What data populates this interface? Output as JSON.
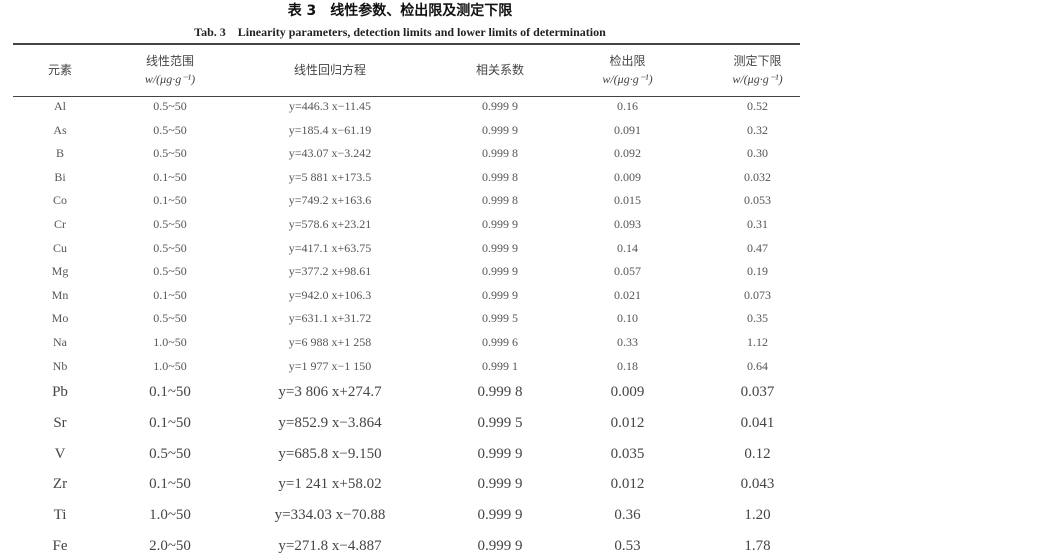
{
  "title": "表 3　线性参数、检出限及测定下限",
  "subtitle": "Tab. 3　Linearity parameters, detection limits and lower limits of determination",
  "headers": {
    "element": "元素",
    "range": "线性范围",
    "range_unit": "w/(μg·g⁻¹)",
    "equation": "线性回归方程",
    "correlation": "相关系数",
    "detection_limit": "检出限",
    "detection_unit": "w/(μg·g⁻¹)",
    "lower_limit": "测定下限",
    "lower_unit": "w/(μg·g⁻¹)"
  },
  "rows": [
    [
      "Al",
      "0.5~50",
      "y=446.3 x−11.45",
      "0.999 9",
      "0.16",
      "0.52"
    ],
    [
      "As",
      "0.5~50",
      "y=185.4 x−61.19",
      "0.999 9",
      "0.091",
      "0.32"
    ],
    [
      "B",
      "0.5~50",
      "y=43.07 x−3.242",
      "0.999 8",
      "0.092",
      "0.30"
    ],
    [
      "Bi",
      "0.1~50",
      "y=5 881 x+173.5",
      "0.999 8",
      "0.009",
      "0.032"
    ],
    [
      "Co",
      "0.1~50",
      "y=749.2 x+163.6",
      "0.999 8",
      "0.015",
      "0.053"
    ],
    [
      "Cr",
      "0.5~50",
      "y=578.6 x+23.21",
      "0.999 9",
      "0.093",
      "0.31"
    ],
    [
      "Cu",
      "0.5~50",
      "y=417.1 x+63.75",
      "0.999 9",
      "0.14",
      "0.47"
    ],
    [
      "Mg",
      "0.5~50",
      "y=377.2 x+98.61",
      "0.999 9",
      "0.057",
      "0.19"
    ],
    [
      "Mn",
      "0.1~50",
      "y=942.0 x+106.3",
      "0.999 9",
      "0.021",
      "0.073"
    ],
    [
      "Mo",
      "0.5~50",
      "y=631.1 x+31.72",
      "0.999 5",
      "0.10",
      "0.35"
    ],
    [
      "Na",
      "1.0~50",
      "y=6 988 x+1 258",
      "0.999 6",
      "0.33",
      "1.12"
    ],
    [
      "Nb",
      "1.0~50",
      "y=1 977 x−1 150",
      "0.999 1",
      "0.18",
      "0.64"
    ],
    [
      "Pb",
      "0.1~50",
      "y=3 806 x+274.7",
      "0.999 8",
      "0.009",
      "0.037"
    ],
    [
      "Sr",
      "0.1~50",
      "y=852.9 x−3.864",
      "0.999 5",
      "0.012",
      "0.041"
    ],
    [
      "V",
      "0.5~50",
      "y=685.8 x−9.150",
      "0.999 9",
      "0.035",
      "0.12"
    ],
    [
      "Zr",
      "0.1~50",
      "y=1 241 x+58.02",
      "0.999 9",
      "0.012",
      "0.043"
    ],
    [
      "Ti",
      "1.0~50",
      "y=334.03 x−70.88",
      "0.999 9",
      "0.36",
      "1.20"
    ],
    [
      "Fe",
      "2.0~50",
      "y=271.8 x−4.887",
      "0.999 9",
      "0.53",
      "1.78"
    ]
  ]
}
